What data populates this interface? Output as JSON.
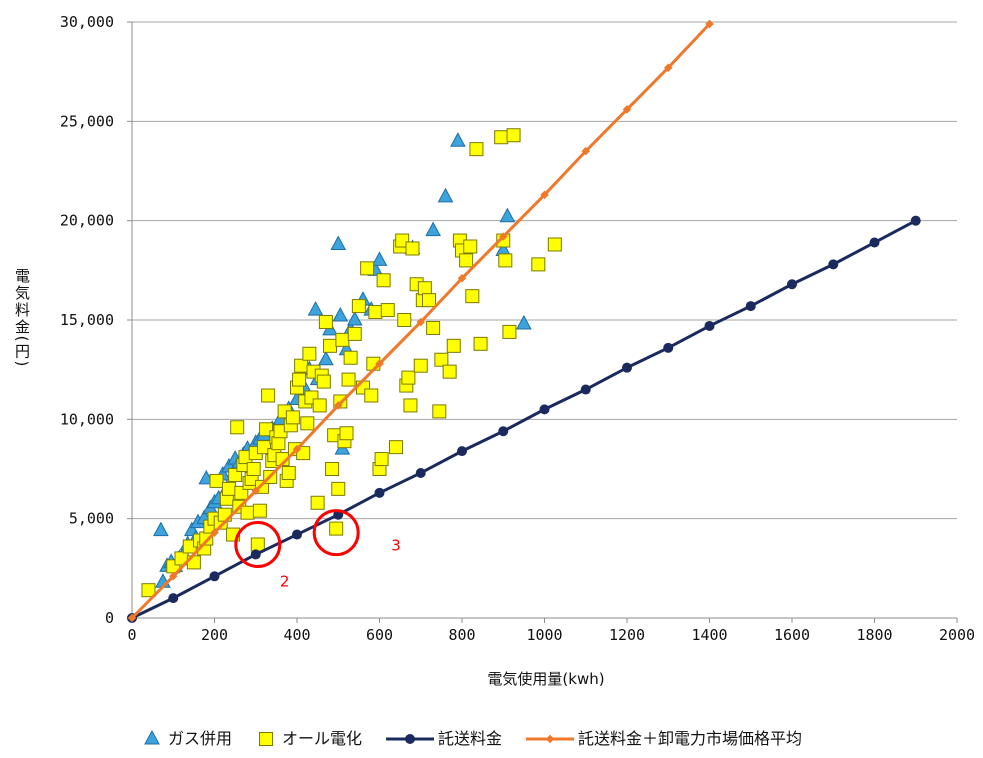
{
  "chart_data": {
    "type": "scatter",
    "xlabel": "電気使用量(kwh)",
    "ylabel": "電気料金(円)",
    "xlim": [
      0,
      2000
    ],
    "ylim": [
      0,
      30000
    ],
    "x_ticks": [
      "0",
      "200",
      "400",
      "600",
      "800",
      "1000",
      "1200",
      "1400",
      "1600",
      "1800",
      "2000"
    ],
    "y_ticks": [
      "0",
      "5,000",
      "10,000",
      "15,000",
      "20,000",
      "25,000",
      "30,000"
    ],
    "grid": "horizontal",
    "legend_position": "bottom",
    "series": [
      {
        "name": "ガス併用",
        "kind": "scatter",
        "marker": "triangle",
        "color": "#3da3dc",
        "points": [
          [
            70,
            4400
          ],
          [
            75,
            1800
          ],
          [
            85,
            2600
          ],
          [
            95,
            2800
          ],
          [
            105,
            2600
          ],
          [
            115,
            3000
          ],
          [
            125,
            3200
          ],
          [
            135,
            3700
          ],
          [
            145,
            4400
          ],
          [
            155,
            4000
          ],
          [
            160,
            4800
          ],
          [
            175,
            5000
          ],
          [
            180,
            7000
          ],
          [
            190,
            5500
          ],
          [
            200,
            5800
          ],
          [
            210,
            6000
          ],
          [
            220,
            7200
          ],
          [
            230,
            6500
          ],
          [
            235,
            7600
          ],
          [
            250,
            8000
          ],
          [
            260,
            7800
          ],
          [
            270,
            8200
          ],
          [
            280,
            8500
          ],
          [
            300,
            8800
          ],
          [
            310,
            9000
          ],
          [
            320,
            9200
          ],
          [
            340,
            9500
          ],
          [
            360,
            10000
          ],
          [
            380,
            10500
          ],
          [
            400,
            11000
          ],
          [
            420,
            11500
          ],
          [
            430,
            12500
          ],
          [
            445,
            15500
          ],
          [
            450,
            12000
          ],
          [
            470,
            13000
          ],
          [
            480,
            14500
          ],
          [
            500,
            18800
          ],
          [
            505,
            15200
          ],
          [
            510,
            8500
          ],
          [
            520,
            13500
          ],
          [
            530,
            14500
          ],
          [
            540,
            15000
          ],
          [
            560,
            16000
          ],
          [
            580,
            15500
          ],
          [
            590,
            17500
          ],
          [
            600,
            18000
          ],
          [
            680,
            18600
          ],
          [
            730,
            19500
          ],
          [
            760,
            21200
          ],
          [
            790,
            24000
          ],
          [
            900,
            18500
          ],
          [
            910,
            20200
          ],
          [
            950,
            14800
          ]
        ]
      },
      {
        "name": "オール電化",
        "kind": "scatter",
        "marker": "square",
        "color": "#ffff00",
        "points": [
          [
            40,
            1400
          ],
          [
            100,
            2600
          ],
          [
            120,
            3000
          ],
          [
            140,
            3600
          ],
          [
            150,
            2800
          ],
          [
            165,
            3900
          ],
          [
            175,
            3500
          ],
          [
            180,
            4000
          ],
          [
            190,
            4600
          ],
          [
            200,
            5000
          ],
          [
            205,
            6900
          ],
          [
            215,
            4800
          ],
          [
            225,
            5200
          ],
          [
            230,
            6000
          ],
          [
            235,
            6500
          ],
          [
            245,
            4200
          ],
          [
            250,
            7200
          ],
          [
            255,
            9600
          ],
          [
            260,
            5600
          ],
          [
            265,
            6300
          ],
          [
            270,
            7700
          ],
          [
            275,
            8100
          ],
          [
            280,
            5300
          ],
          [
            285,
            6800
          ],
          [
            290,
            7000
          ],
          [
            295,
            7500
          ],
          [
            300,
            8300
          ],
          [
            305,
            3700
          ],
          [
            310,
            5400
          ],
          [
            315,
            6600
          ],
          [
            320,
            8600
          ],
          [
            325,
            9500
          ],
          [
            330,
            11200
          ],
          [
            335,
            7100
          ],
          [
            340,
            7900
          ],
          [
            345,
            8200
          ],
          [
            350,
            9100
          ],
          [
            355,
            8800
          ],
          [
            360,
            9400
          ],
          [
            365,
            8000
          ],
          [
            370,
            10400
          ],
          [
            375,
            6900
          ],
          [
            380,
            7300
          ],
          [
            385,
            9700
          ],
          [
            390,
            10100
          ],
          [
            395,
            8500
          ],
          [
            400,
            11600
          ],
          [
            405,
            12000
          ],
          [
            410,
            12700
          ],
          [
            415,
            8300
          ],
          [
            420,
            10900
          ],
          [
            425,
            9800
          ],
          [
            430,
            13300
          ],
          [
            435,
            11100
          ],
          [
            440,
            12400
          ],
          [
            450,
            5800
          ],
          [
            455,
            10700
          ],
          [
            460,
            12200
          ],
          [
            465,
            11900
          ],
          [
            470,
            14900
          ],
          [
            480,
            13700
          ],
          [
            485,
            7500
          ],
          [
            490,
            9200
          ],
          [
            495,
            4500
          ],
          [
            500,
            6500
          ],
          [
            505,
            10900
          ],
          [
            510,
            14000
          ],
          [
            515,
            8900
          ],
          [
            520,
            9300
          ],
          [
            525,
            12000
          ],
          [
            530,
            13100
          ],
          [
            540,
            14300
          ],
          [
            550,
            15700
          ],
          [
            560,
            11600
          ],
          [
            570,
            17600
          ],
          [
            580,
            11200
          ],
          [
            585,
            12800
          ],
          [
            590,
            15400
          ],
          [
            600,
            7500
          ],
          [
            605,
            8000
          ],
          [
            610,
            17000
          ],
          [
            620,
            15500
          ],
          [
            640,
            8600
          ],
          [
            650,
            18700
          ],
          [
            655,
            19000
          ],
          [
            660,
            15000
          ],
          [
            665,
            11700
          ],
          [
            670,
            12100
          ],
          [
            675,
            10700
          ],
          [
            680,
            18600
          ],
          [
            690,
            16800
          ],
          [
            700,
            12700
          ],
          [
            705,
            16000
          ],
          [
            710,
            16600
          ],
          [
            720,
            16000
          ],
          [
            730,
            14600
          ],
          [
            745,
            10400
          ],
          [
            750,
            13000
          ],
          [
            770,
            12400
          ],
          [
            780,
            13700
          ],
          [
            795,
            19000
          ],
          [
            800,
            18500
          ],
          [
            810,
            18000
          ],
          [
            820,
            18700
          ],
          [
            825,
            16200
          ],
          [
            835,
            23600
          ],
          [
            845,
            13800
          ],
          [
            895,
            24200
          ],
          [
            900,
            19000
          ],
          [
            905,
            18000
          ],
          [
            915,
            14400
          ],
          [
            925,
            24300
          ],
          [
            985,
            17800
          ],
          [
            1025,
            18800
          ]
        ]
      },
      {
        "name": "託送料金",
        "kind": "line",
        "color": "#1a2a5e",
        "points": [
          [
            0,
            0
          ],
          [
            100,
            1000
          ],
          [
            200,
            2100
          ],
          [
            300,
            3200
          ],
          [
            400,
            4200
          ],
          [
            500,
            5200
          ],
          [
            600,
            6300
          ],
          [
            700,
            7300
          ],
          [
            800,
            8400
          ],
          [
            900,
            9400
          ],
          [
            1000,
            10500
          ],
          [
            1100,
            11500
          ],
          [
            1200,
            12600
          ],
          [
            1300,
            13600
          ],
          [
            1400,
            14700
          ],
          [
            1500,
            15700
          ],
          [
            1600,
            16800
          ],
          [
            1700,
            17800
          ],
          [
            1800,
            18900
          ],
          [
            1900,
            20000
          ]
        ]
      },
      {
        "name": "託送料金＋卸電力市場価格平均",
        "kind": "line",
        "color": "#f0782a",
        "points": [
          [
            0,
            0
          ],
          [
            100,
            2100
          ],
          [
            200,
            4300
          ],
          [
            300,
            6400
          ],
          [
            400,
            8500
          ],
          [
            500,
            10700
          ],
          [
            600,
            12800
          ],
          [
            700,
            14900
          ],
          [
            800,
            17100
          ],
          [
            900,
            19200
          ],
          [
            1000,
            21300
          ],
          [
            1100,
            23500
          ],
          [
            1200,
            25600
          ],
          [
            1300,
            27700
          ],
          [
            1400,
            29900
          ]
        ]
      }
    ],
    "annotations": [
      {
        "label": "2",
        "x": 305,
        "y": 3700,
        "color": "#ff0000"
      },
      {
        "label": "3",
        "x": 495,
        "y": 4300,
        "color": "#ff0000"
      }
    ]
  }
}
